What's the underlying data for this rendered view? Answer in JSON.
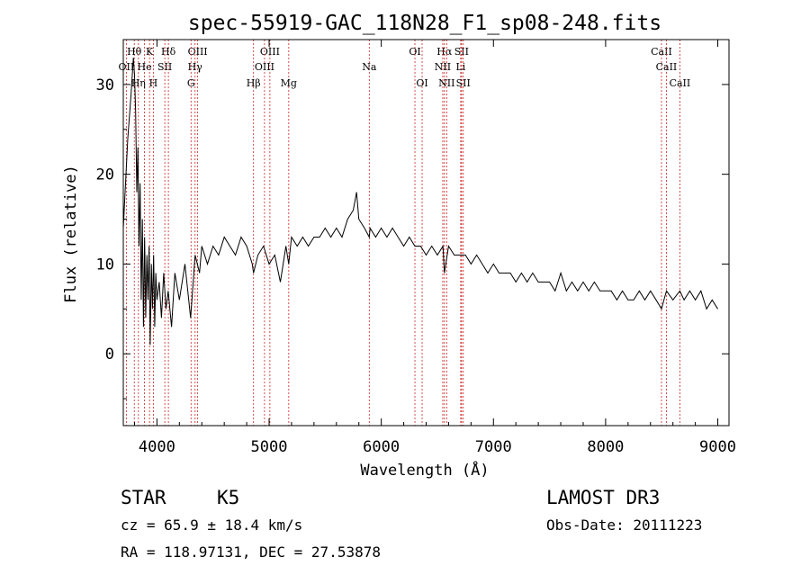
{
  "chart_data": {
    "type": "line",
    "title": "spec-55919-GAC_118N28_F1_sp08-248.fits",
    "xlabel": "Wavelength (Å)",
    "ylabel": "Flux (relative)",
    "xlim": [
      3700,
      9100
    ],
    "ylim": [
      -8,
      35
    ],
    "xticks": [
      4000,
      5000,
      6000,
      7000,
      8000,
      9000
    ],
    "yticks": [
      0,
      10,
      20,
      30
    ],
    "series": [
      {
        "name": "flux",
        "x": [
          3700,
          3740,
          3770,
          3790,
          3800,
          3810,
          3820,
          3830,
          3840,
          3850,
          3860,
          3870,
          3880,
          3890,
          3900,
          3910,
          3920,
          3930,
          3940,
          3950,
          3960,
          3970,
          3980,
          3990,
          4000,
          4020,
          4040,
          4060,
          4080,
          4100,
          4130,
          4160,
          4200,
          4250,
          4300,
          4340,
          4380,
          4400,
          4450,
          4500,
          4550,
          4600,
          4650,
          4700,
          4750,
          4800,
          4850,
          4861,
          4900,
          4950,
          5000,
          5050,
          5100,
          5150,
          5175,
          5200,
          5250,
          5300,
          5350,
          5400,
          5450,
          5500,
          5550,
          5600,
          5650,
          5700,
          5750,
          5780,
          5800,
          5850,
          5893,
          5900,
          5950,
          6000,
          6050,
          6100,
          6150,
          6200,
          6250,
          6300,
          6350,
          6400,
          6450,
          6500,
          6550,
          6563,
          6600,
          6650,
          6700,
          6750,
          6800,
          6850,
          6900,
          6950,
          7000,
          7050,
          7100,
          7150,
          7200,
          7250,
          7300,
          7350,
          7400,
          7450,
          7500,
          7550,
          7600,
          7650,
          7700,
          7750,
          7800,
          7850,
          7900,
          7950,
          8000,
          8050,
          8100,
          8150,
          8200,
          8250,
          8300,
          8350,
          8400,
          8450,
          8498,
          8542,
          8600,
          8662,
          8700,
          8750,
          8800,
          8850,
          8900,
          8950,
          9000
        ],
        "values": [
          14,
          24,
          29,
          33,
          31,
          27,
          18,
          23,
          12,
          19,
          6,
          15,
          3,
          13,
          4,
          11,
          6,
          12,
          1,
          10,
          5,
          11,
          3,
          9,
          6,
          8,
          4,
          9,
          5,
          7,
          3,
          9,
          6,
          10,
          4,
          11,
          9,
          12,
          10,
          12,
          11,
          13,
          12,
          11,
          13,
          12,
          10,
          9,
          11,
          12,
          10,
          11,
          8,
          12,
          10,
          13,
          12,
          13,
          12,
          13,
          13,
          14,
          13,
          14,
          13,
          15,
          16,
          18,
          15,
          14,
          13,
          14,
          13,
          14,
          13,
          14,
          13,
          12,
          13,
          12,
          12,
          11,
          12,
          11,
          12,
          9,
          12,
          11,
          11,
          11,
          10,
          11,
          10,
          9,
          10,
          9,
          9,
          9,
          8,
          9,
          8,
          9,
          8,
          8,
          8,
          7,
          9,
          7,
          8,
          7,
          8,
          7,
          8,
          7,
          7,
          7,
          6,
          7,
          6,
          6,
          7,
          6,
          7,
          6,
          5,
          7,
          6,
          7,
          6,
          7,
          6,
          7,
          5,
          6,
          5
        ]
      }
    ],
    "lines_top": [
      {
        "label": "Hθ",
        "x": 3798,
        "row": 1
      },
      {
        "label": "K",
        "x": 3934,
        "row": 1
      },
      {
        "label": "Hδ",
        "x": 4102,
        "row": 1
      },
      {
        "label": "OIII",
        "x": 4363,
        "row": 1
      },
      {
        "label": "OIII",
        "x": 5007,
        "row": 1
      },
      {
        "label": "OI",
        "x": 6300,
        "row": 1
      },
      {
        "label": "Hα",
        "x": 6563,
        "row": 1
      },
      {
        "label": "SII",
        "x": 6716,
        "row": 1
      },
      {
        "label": "CaII",
        "x": 8498,
        "row": 1
      },
      {
        "label": "OII",
        "x": 3727,
        "row": 2
      },
      {
        "label": "He",
        "x": 3889,
        "row": 2
      },
      {
        "label": "SII",
        "x": 4070,
        "row": 2
      },
      {
        "label": "Hγ",
        "x": 4340,
        "row": 2
      },
      {
        "label": "OIII",
        "x": 4959,
        "row": 2
      },
      {
        "label": "Na",
        "x": 5893,
        "row": 2
      },
      {
        "label": "NII",
        "x": 6548,
        "row": 2
      },
      {
        "label": "Li",
        "x": 6708,
        "row": 2
      },
      {
        "label": "CaII",
        "x": 8542,
        "row": 2
      },
      {
        "label": "Hη",
        "x": 3835,
        "row": 3
      },
      {
        "label": "H",
        "x": 3968,
        "row": 3
      },
      {
        "label": "G",
        "x": 4304,
        "row": 3
      },
      {
        "label": "Hβ",
        "x": 4861,
        "row": 3
      },
      {
        "label": "Mg",
        "x": 5175,
        "row": 3
      },
      {
        "label": "OI",
        "x": 6364,
        "row": 3
      },
      {
        "label": "NII",
        "x": 6583,
        "row": 3
      },
      {
        "label": "SII",
        "x": 6731,
        "row": 3
      },
      {
        "label": "CaII",
        "x": 8662,
        "row": 3
      }
    ]
  },
  "info": {
    "class": "STAR",
    "subclass": "K5",
    "survey": "LAMOST DR3",
    "cz": "cz = 65.9 ± 18.4 km/s",
    "obs_date": "Obs-Date: 20111223",
    "coords": "RA = 118.97131, DEC =  27.53878"
  },
  "colors": {
    "line_marker": "#cc2222",
    "spectrum": "#000000"
  }
}
